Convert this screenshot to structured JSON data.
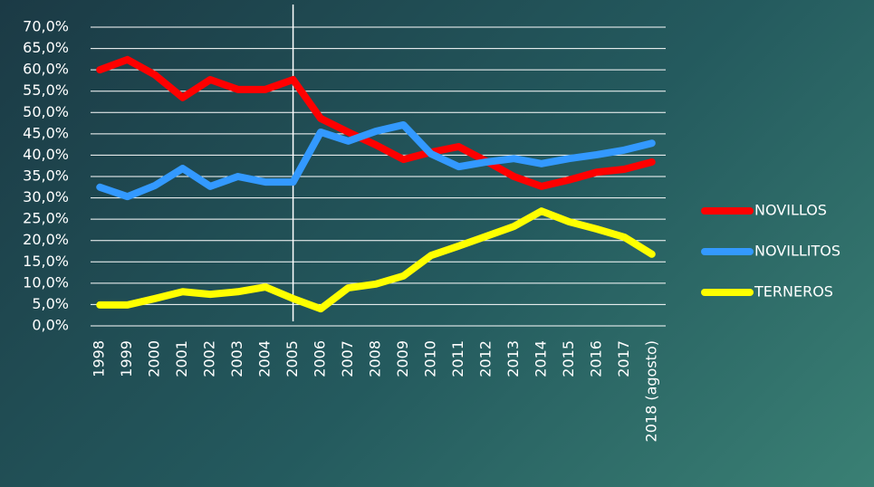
{
  "chart_data": {
    "type": "line",
    "categories": [
      "1998",
      "1999",
      "2000",
      "2001",
      "2002",
      "2003",
      "2004",
      "2005",
      "2006",
      "2007",
      "2008",
      "2009",
      "2010",
      "2011",
      "2012",
      "2013",
      "2014",
      "2015",
      "2016",
      "2017",
      "2018 (agosto)"
    ],
    "series": [
      {
        "name": "NOVILLOS",
        "color": "#ff0000",
        "values": [
          60,
          62.4,
          58.8,
          53.5,
          57.7,
          55.4,
          55.4,
          57.7,
          48.6,
          45.4,
          42.4,
          39,
          40.7,
          42,
          38.6,
          35,
          32.7,
          34.2,
          36,
          36.7,
          38.4
        ]
      },
      {
        "name": "NOVILLITOS",
        "color": "#3399ff",
        "values": [
          32.5,
          30.3,
          32.9,
          36.9,
          32.7,
          35,
          33.7,
          33.7,
          45.4,
          43.3,
          45.6,
          47.1,
          40.3,
          37.3,
          38.4,
          39.2,
          38,
          39.2,
          40.1,
          41.2,
          42.8
        ]
      },
      {
        "name": "TERNEROS",
        "color": "#ffff00",
        "values": [
          4.9,
          4.9,
          6.4,
          8,
          7.4,
          8,
          9.1,
          6.4,
          4,
          8.9,
          9.8,
          11.7,
          16.5,
          18.7,
          21,
          23.3,
          26.9,
          24.4,
          22.7,
          20.8,
          16.8
        ]
      }
    ],
    "ylim": [
      0,
      70
    ],
    "yticks": [
      {
        "value": 0,
        "label": "0,0%"
      },
      {
        "value": 5,
        "label": "5,0%"
      },
      {
        "value": 10,
        "label": "10,0%"
      },
      {
        "value": 15,
        "label": "15,0%"
      },
      {
        "value": 20,
        "label": "20,0%"
      },
      {
        "value": 25,
        "label": "25,0%"
      },
      {
        "value": 30,
        "label": "30,0%"
      },
      {
        "value": 35,
        "label": "35,0%"
      },
      {
        "value": 40,
        "label": "40,0%"
      },
      {
        "value": 45,
        "label": "45,0%"
      },
      {
        "value": 50,
        "label": "50,0%"
      },
      {
        "value": 55,
        "label": "55,0%"
      },
      {
        "value": 60,
        "label": "60,0%"
      },
      {
        "value": 65,
        "label": "65,0%"
      },
      {
        "value": 70,
        "label": "70,0%"
      }
    ],
    "grid": true,
    "vline": "2005",
    "legend": "right"
  }
}
